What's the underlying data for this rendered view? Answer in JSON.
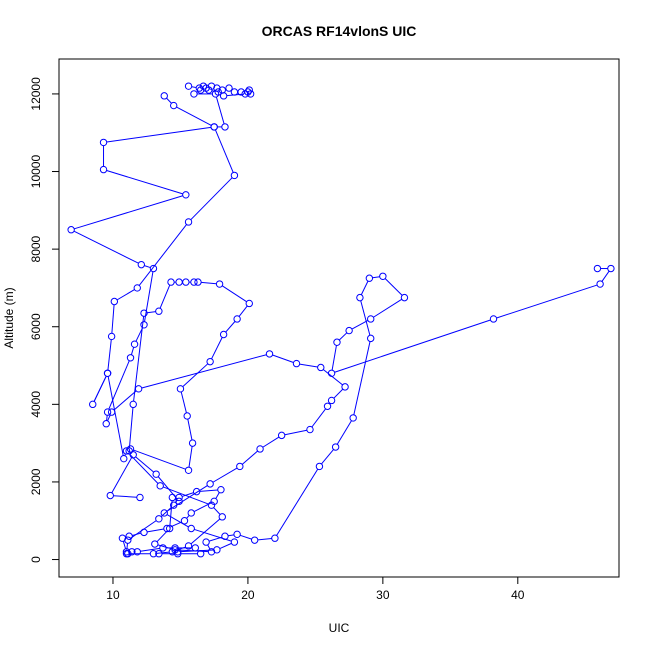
{
  "chart_data": {
    "type": "line",
    "title": "ORCAS RF14vlonS UIC",
    "xlabel": "UIC",
    "ylabel": "Altitude (m)",
    "xlim": [
      6,
      47.5
    ],
    "ylim": [
      -450,
      12900
    ],
    "xticks": [
      10,
      20,
      30,
      40
    ],
    "yticks": [
      0,
      2000,
      4000,
      6000,
      8000,
      10000,
      12000
    ],
    "grid": false,
    "legend": "none",
    "color": "#0000ff",
    "marker": "open-circle",
    "series": [
      {
        "points": [
          [
            14.8,
            200
          ],
          [
            17.7,
            250
          ],
          [
            19.0,
            450
          ],
          [
            15.8,
            800
          ],
          [
            13.8,
            1200
          ],
          [
            17.2,
            1950
          ],
          [
            19.4,
            2400
          ],
          [
            20.9,
            2850
          ],
          [
            22.5,
            3200
          ],
          [
            24.6,
            3350
          ],
          [
            25.9,
            3950
          ],
          [
            26.2,
            4100
          ],
          [
            27.2,
            4450
          ],
          [
            25.4,
            4950
          ],
          [
            23.6,
            5050
          ],
          [
            21.6,
            5300
          ],
          [
            11.9,
            4400
          ],
          [
            9.9,
            3800
          ],
          [
            9.5,
            3500
          ],
          [
            9.6,
            3800
          ],
          [
            11.3,
            5200
          ],
          [
            11.6,
            5550
          ],
          [
            12.3,
            6050
          ],
          [
            13.0,
            7500
          ],
          [
            12.1,
            7600
          ],
          [
            6.9,
            8500
          ],
          [
            15.4,
            9400
          ],
          [
            9.3,
            10050
          ],
          [
            9.3,
            10750
          ],
          [
            17.5,
            11150
          ],
          [
            19.0,
            9900
          ],
          [
            15.6,
            8700
          ],
          [
            11.8,
            7000
          ],
          [
            10.1,
            6650
          ],
          [
            9.9,
            5750
          ],
          [
            9.6,
            4800
          ],
          [
            8.5,
            4000
          ],
          [
            9.6,
            4800
          ],
          [
            10.8,
            2600
          ],
          [
            11.0,
            2800
          ],
          [
            13.5,
            1900
          ],
          [
            17.3,
            1400
          ],
          [
            18.1,
            1100
          ],
          [
            15.6,
            350
          ],
          [
            14.4,
            200
          ],
          [
            13.0,
            150
          ],
          [
            11.0,
            150
          ],
          [
            11.1,
            500
          ],
          [
            13.4,
            1050
          ],
          [
            14.5,
            1400
          ],
          [
            14.9,
            1600
          ],
          [
            16.2,
            1750
          ],
          [
            18.0,
            1800
          ],
          [
            17.5,
            1500
          ],
          [
            15.8,
            1200
          ],
          [
            15.3,
            1000
          ],
          [
            14.0,
            800
          ],
          [
            12.3,
            700
          ],
          [
            11.2,
            600
          ],
          [
            10.7,
            550
          ],
          [
            11.0,
            200
          ],
          [
            11.1,
            150
          ],
          [
            11.4,
            200
          ],
          [
            11.8,
            200
          ],
          [
            13.7,
            300
          ],
          [
            14.6,
            300
          ],
          [
            16.1,
            300
          ],
          [
            16.5,
            150
          ],
          [
            14.8,
            150
          ],
          [
            13.4,
            150
          ]
        ]
      },
      {
        "points": [
          [
            11.3,
            2850
          ],
          [
            15.6,
            2300
          ],
          [
            15.9,
            3000
          ],
          [
            15.5,
            3700
          ],
          [
            15.0,
            4400
          ],
          [
            17.2,
            5100
          ],
          [
            18.2,
            5800
          ],
          [
            19.2,
            6200
          ],
          [
            20.1,
            6600
          ],
          [
            17.9,
            7100
          ],
          [
            16.3,
            7150
          ],
          [
            16.0,
            7150
          ],
          [
            15.4,
            7150
          ],
          [
            14.9,
            7150
          ],
          [
            14.3,
            7150
          ],
          [
            13.4,
            6400
          ],
          [
            12.3,
            6350
          ],
          [
            11.5,
            4000
          ],
          [
            11.2,
            2800
          ]
        ]
      },
      {
        "points": [
          [
            12.0,
            1600
          ],
          [
            9.8,
            1650
          ],
          [
            11.5,
            2700
          ],
          [
            13.2,
            2200
          ],
          [
            14.9,
            1500
          ],
          [
            14.4,
            1600
          ],
          [
            14.2,
            800
          ],
          [
            13.1,
            400
          ],
          [
            14.6,
            250
          ],
          [
            17.3,
            200
          ],
          [
            16.9,
            450
          ],
          [
            18.3,
            600
          ],
          [
            19.2,
            650
          ],
          [
            20.5,
            500
          ],
          [
            22.0,
            550
          ],
          [
            25.3,
            2400
          ],
          [
            26.5,
            2900
          ],
          [
            27.8,
            3650
          ],
          [
            29.1,
            5700
          ],
          [
            28.3,
            6750
          ],
          [
            29.0,
            7250
          ],
          [
            30.0,
            7300
          ],
          [
            31.6,
            6750
          ],
          [
            29.1,
            6200
          ],
          [
            27.5,
            5900
          ],
          [
            26.6,
            5600
          ],
          [
            26.2,
            4800
          ],
          [
            38.2,
            6200
          ],
          [
            46.1,
            7100
          ],
          [
            46.9,
            7500
          ],
          [
            45.9,
            7500
          ]
        ]
      },
      {
        "points": [
          [
            13.8,
            11950
          ],
          [
            14.5,
            11700
          ],
          [
            17.5,
            11150
          ],
          [
            18.3,
            11150
          ],
          [
            17.6,
            12000
          ],
          [
            16.0,
            12000
          ],
          [
            16.5,
            12100
          ],
          [
            16.9,
            12150
          ],
          [
            17.3,
            12200
          ],
          [
            17.7,
            12150
          ],
          [
            18.1,
            12100
          ],
          [
            18.6,
            12150
          ],
          [
            19.0,
            12050
          ],
          [
            19.5,
            12050
          ],
          [
            20.0,
            12050
          ],
          [
            20.2,
            12000
          ],
          [
            20.1,
            12100
          ],
          [
            19.8,
            12000
          ],
          [
            18.2,
            11950
          ],
          [
            17.8,
            12050
          ],
          [
            17.1,
            12100
          ],
          [
            16.7,
            12200
          ],
          [
            16.4,
            12150
          ],
          [
            15.6,
            12200
          ]
        ]
      }
    ]
  }
}
